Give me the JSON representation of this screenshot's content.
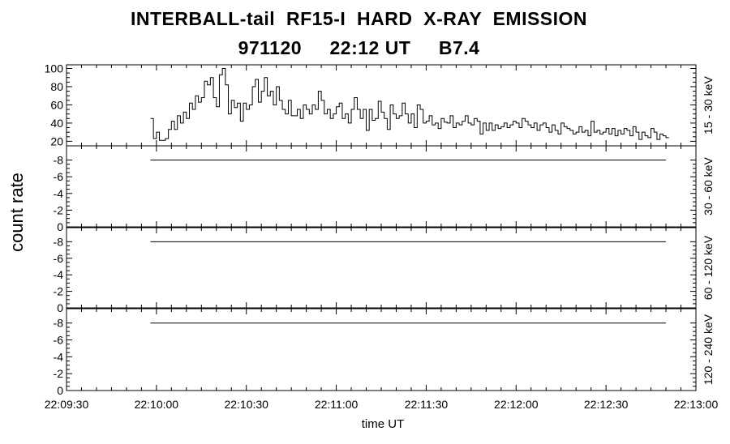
{
  "title": "INTERBALL-tail  RF15-I  HARD  X-RAY  EMISSION",
  "subtitle": "971120     22:12 UT     B7.4",
  "y_axis_label": "count rate",
  "chart_data": [
    {
      "type": "line",
      "step": true,
      "panel_label": "15 - 30 keV",
      "xlabel": "time UT",
      "x_ticks": [
        "22:09:30",
        "22:10:00",
        "22:10:30",
        "22:11:00",
        "22:11:30",
        "22:12:00",
        "22:12:30",
        "22:13:00"
      ],
      "x_range_seconds_after_22_09_30": [
        0,
        210
      ],
      "y_ticks": [
        "20",
        "40",
        "60",
        "80",
        "100"
      ],
      "ylim": [
        15,
        104
      ],
      "series": [
        {
          "t_start": "22:09:58",
          "t_step_seconds": 1,
          "values": [
            45,
            23,
            30,
            21,
            21,
            23,
            33,
            42,
            33,
            48,
            40,
            52,
            45,
            62,
            55,
            70,
            63,
            68,
            86,
            82,
            90,
            68,
            58,
            93,
            100,
            82,
            50,
            65,
            57,
            62,
            42,
            62,
            55,
            60,
            80,
            88,
            63,
            75,
            90,
            70,
            75,
            60,
            80,
            65,
            55,
            50,
            65,
            48,
            48,
            55,
            45,
            60,
            55,
            50,
            60,
            55,
            75,
            65,
            50,
            55,
            45,
            50,
            58,
            62,
            45,
            50,
            40,
            55,
            68,
            55,
            45,
            55,
            32,
            55,
            43,
            45,
            64,
            52,
            45,
            33,
            60,
            50,
            45,
            48,
            62,
            50,
            40,
            50,
            35,
            60,
            55,
            40,
            42,
            48,
            38,
            40,
            34,
            45,
            41,
            40,
            48,
            35,
            40,
            38,
            42,
            48,
            40,
            38,
            45,
            42,
            28,
            40,
            32,
            40,
            32,
            38,
            34,
            36,
            40,
            35,
            38,
            42,
            40,
            35,
            45,
            42,
            38,
            35,
            40,
            32,
            38,
            40,
            35,
            30,
            38,
            32,
            28,
            40,
            36,
            34,
            32,
            28,
            30,
            36,
            30,
            32,
            26,
            42,
            30,
            32,
            28,
            30,
            34,
            28,
            34,
            26,
            32,
            28,
            34,
            32,
            26,
            36,
            30,
            22,
            30,
            26,
            24,
            34,
            30,
            22,
            28,
            26,
            24
          ]
        }
      ]
    },
    {
      "type": "line",
      "panel_label": "30 - 60 keV",
      "y_ticks": [
        "0",
        "-2",
        "-4",
        "-6",
        "-8"
      ],
      "ylim": [
        0,
        -9.7
      ],
      "series": [
        {
          "t_start": "22:09:58",
          "t_end": "22:12:50",
          "value": -8
        }
      ]
    },
    {
      "type": "line",
      "panel_label": "60 - 120 keV",
      "y_ticks": [
        "0",
        "-2",
        "-4",
        "-6",
        "-8"
      ],
      "ylim": [
        0,
        -9.7
      ],
      "series": [
        {
          "t_start": "22:09:58",
          "t_end": "22:12:50",
          "value": -8
        }
      ]
    },
    {
      "type": "line",
      "panel_label": "120 - 240 keV",
      "y_ticks": [
        "0",
        "-2",
        "-4",
        "-6",
        "-8"
      ],
      "ylim": [
        0,
        -9.7
      ],
      "series": [
        {
          "t_start": "22:09:58",
          "t_end": "22:12:50",
          "value": -8
        }
      ]
    }
  ]
}
